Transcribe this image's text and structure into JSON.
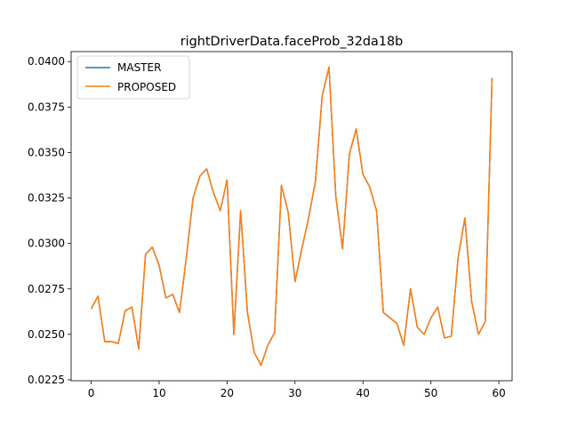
{
  "chart_data": {
    "type": "line",
    "title": "rightDriverData.faceProb_32da18b",
    "xlabel": "",
    "ylabel": "",
    "xlim": [
      -2.95,
      61.95
    ],
    "ylim": [
      0.02245,
      0.04055
    ],
    "x_ticks": [
      0,
      10,
      20,
      30,
      40,
      50,
      60
    ],
    "x_tick_labels": [
      "0",
      "10",
      "20",
      "30",
      "40",
      "50",
      "60"
    ],
    "y_ticks": [
      0.0225,
      0.025,
      0.0275,
      0.03,
      0.0325,
      0.035,
      0.0375,
      0.04
    ],
    "y_tick_labels": [
      "0.0225",
      "0.0250",
      "0.0275",
      "0.0300",
      "0.0325",
      "0.0350",
      "0.0375",
      "0.0400"
    ],
    "grid": false,
    "legend_position": "top-left",
    "x": [
      0,
      1,
      2,
      3,
      4,
      5,
      6,
      7,
      8,
      9,
      10,
      11,
      12,
      13,
      14,
      15,
      16,
      17,
      18,
      19,
      20,
      21,
      22,
      23,
      24,
      25,
      26,
      27,
      28,
      29,
      30,
      31,
      32,
      33,
      34,
      35,
      36,
      37,
      38,
      39,
      40,
      41,
      42,
      43,
      44,
      45,
      46,
      47,
      48,
      49,
      50,
      51,
      52,
      53,
      54,
      55,
      56,
      57,
      58,
      59
    ],
    "series": [
      {
        "name": "MASTER",
        "color": "#1f77b4",
        "values": [
          0.0264,
          0.0271,
          0.0246,
          0.0246,
          0.0245,
          0.0263,
          0.0265,
          0.0242,
          0.0294,
          0.0298,
          0.0288,
          0.027,
          0.0272,
          0.0262,
          0.0292,
          0.0325,
          0.0337,
          0.0341,
          0.0328,
          0.0318,
          0.0335,
          0.025,
          0.0318,
          0.0262,
          0.024,
          0.0233,
          0.0244,
          0.0251,
          0.0332,
          0.0317,
          0.0279,
          0.0297,
          0.0314,
          0.0334,
          0.0381,
          0.0397,
          0.0326,
          0.0297,
          0.0349,
          0.0363,
          0.0338,
          0.0331,
          0.0318,
          0.0262,
          0.0259,
          0.0256,
          0.0244,
          0.0275,
          0.0254,
          0.025,
          0.0259,
          0.0265,
          0.0248,
          0.0249,
          0.0292,
          0.0314,
          0.0268,
          0.025,
          0.0257,
          0.0391
        ]
      },
      {
        "name": "PROPOSED",
        "color": "#ff7f0e",
        "values": [
          0.0264,
          0.0271,
          0.0246,
          0.0246,
          0.0245,
          0.0263,
          0.0265,
          0.0242,
          0.0294,
          0.0298,
          0.0288,
          0.027,
          0.0272,
          0.0262,
          0.0292,
          0.0325,
          0.0337,
          0.0341,
          0.0328,
          0.0318,
          0.0335,
          0.025,
          0.0318,
          0.0262,
          0.024,
          0.0233,
          0.0244,
          0.0251,
          0.0332,
          0.0317,
          0.0279,
          0.0297,
          0.0314,
          0.0334,
          0.0381,
          0.0397,
          0.0326,
          0.0297,
          0.0349,
          0.0363,
          0.0338,
          0.0331,
          0.0318,
          0.0262,
          0.0259,
          0.0256,
          0.0244,
          0.0275,
          0.0254,
          0.025,
          0.0259,
          0.0265,
          0.0248,
          0.0249,
          0.0292,
          0.0314,
          0.0268,
          0.025,
          0.0257,
          0.0391
        ]
      }
    ]
  }
}
